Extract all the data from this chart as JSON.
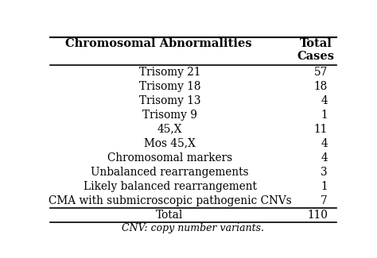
{
  "col1_header": "Chromosomal Abnormalities",
  "col2_header": "Total\nCases",
  "rows": [
    [
      "Trisomy 21",
      "57"
    ],
    [
      "Trisomy 18",
      "18"
    ],
    [
      "Trisomy 13",
      "4"
    ],
    [
      "Trisomy 9",
      "1"
    ],
    [
      "45,X",
      "11"
    ],
    [
      "Mos 45,X",
      "4"
    ],
    [
      "Chromosomal markers",
      "4"
    ],
    [
      "Unbalanced rearrangements",
      "3"
    ],
    [
      "Likely balanced rearrangement",
      "1"
    ],
    [
      "CMA with submicroscopic pathogenic CNVs",
      "7"
    ]
  ],
  "total_label": "Total",
  "total_value": "110",
  "footnote": "CNV: copy number variants.",
  "bg_color": "#ffffff",
  "text_color": "#000000",
  "header_fontsize": 10.5,
  "body_fontsize": 9.8,
  "footnote_fontsize": 9.0
}
